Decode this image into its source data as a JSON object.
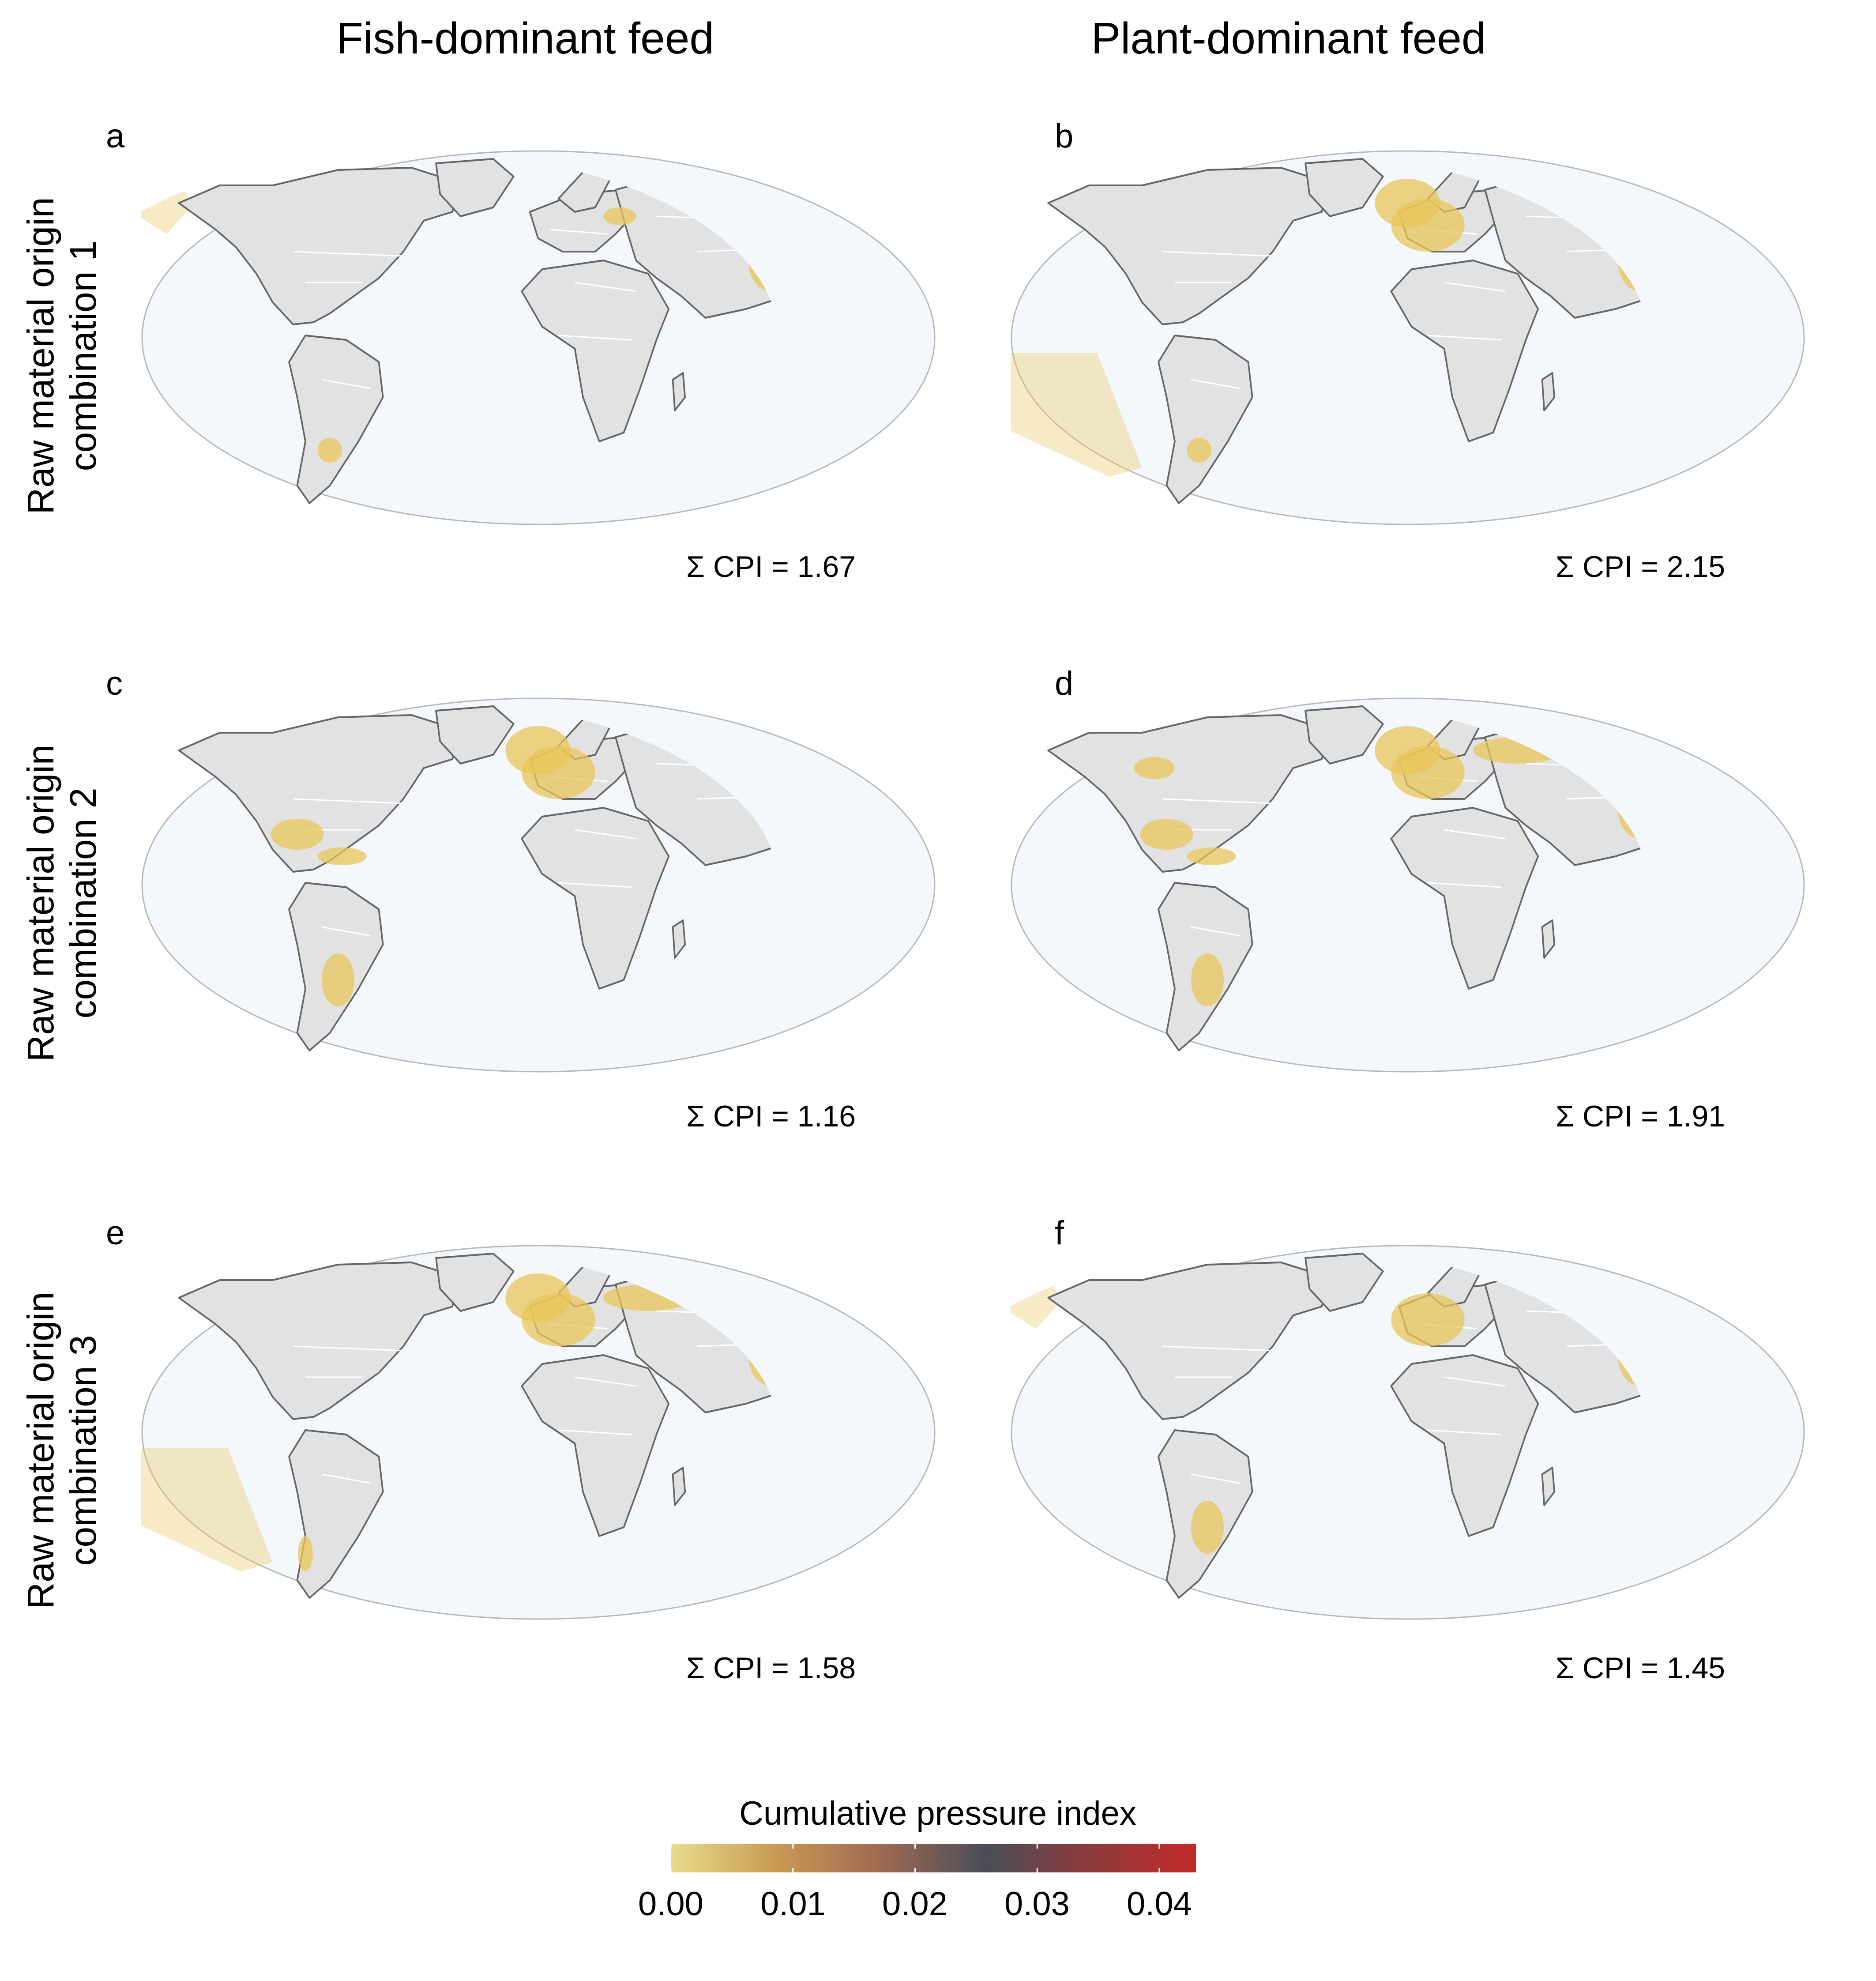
{
  "columns": [
    "Fish-dominant feed",
    "Plant-dominant feed"
  ],
  "rows": [
    "Raw material origin\ncombination 1",
    "Raw material origin\ncombination 2",
    "Raw material origin\ncombination 3"
  ],
  "panels": [
    {
      "letter": "a",
      "cpi": "Σ CPI = 1.67",
      "hotspots": [
        "us-west-coast",
        "china",
        "nw-pacific",
        "europe-east",
        "uruguay",
        "se-australia"
      ]
    },
    {
      "letter": "b",
      "cpi": "Σ CPI = 2.15",
      "hotspots": [
        "north-sea",
        "europe",
        "china",
        "se-pacific",
        "uruguay",
        "se-australia"
      ]
    },
    {
      "letter": "c",
      "cpi": "Σ CPI = 1.16",
      "hotspots": [
        "north-sea",
        "europe",
        "gulf-of-mexico",
        "caribbean",
        "south-brazil"
      ]
    },
    {
      "letter": "d",
      "cpi": "Σ CPI = 1.91",
      "hotspots": [
        "north-sea",
        "europe",
        "russia",
        "gulf-of-mexico",
        "caribbean",
        "south-brazil",
        "china",
        "us-midwest"
      ]
    },
    {
      "letter": "e",
      "cpi": "Σ CPI = 1.58",
      "hotspots": [
        "north-sea",
        "europe",
        "russia",
        "china",
        "se-pacific",
        "chile"
      ]
    },
    {
      "letter": "f",
      "cpi": "Σ CPI = 1.45",
      "hotspots": [
        "us-west-coast",
        "europe",
        "china",
        "nw-pacific",
        "south-brazil",
        "se-australia"
      ]
    }
  ],
  "legend": {
    "title": "Cumulative pressure index",
    "ticks": [
      "0.00",
      "0.01",
      "0.02",
      "0.03",
      "0.04"
    ],
    "range": [
      0,
      0.043
    ],
    "colors": [
      "#e9dc8a",
      "#c89a55",
      "#9d6a52",
      "#4a4d58",
      "#8e3a3a",
      "#c32a2a"
    ]
  },
  "colors": {
    "ocean": "#f4f8fc",
    "land": "#e2e2e2",
    "border": "#ffffff",
    "coast": "#666666",
    "outline": "#b8b8b8",
    "hotspot": "#e8c55a"
  }
}
